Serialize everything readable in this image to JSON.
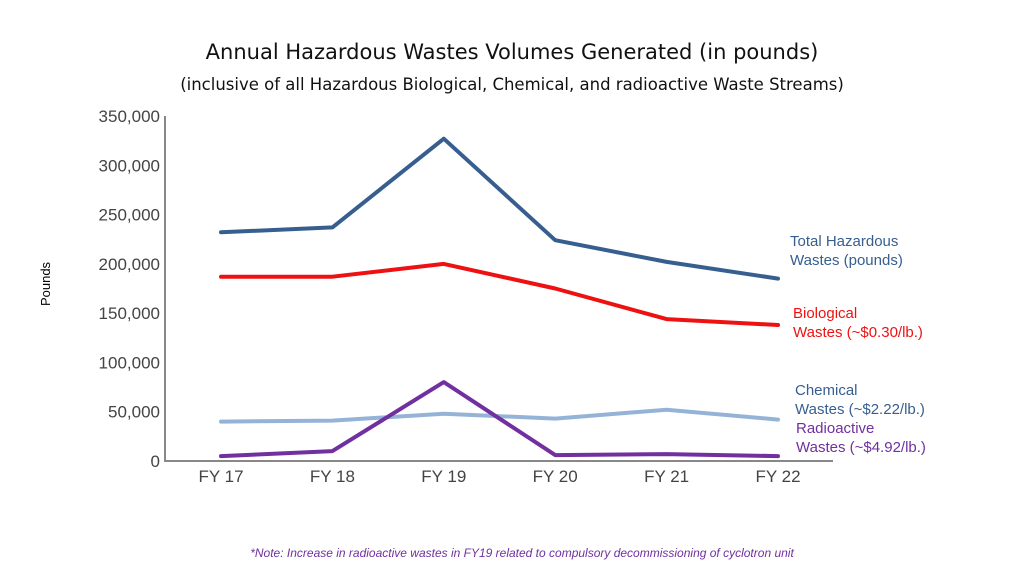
{
  "chart_data": {
    "type": "line",
    "title": "Annual Hazardous Wastes Volumes Generated (in pounds)",
    "subtitle": "(inclusive of all Hazardous Biological, Chemical, and radioactive Waste Streams)",
    "ylabel": "Pounds",
    "xlabel": "",
    "categories": [
      "FY 17",
      "FY 18",
      "FY 19",
      "FY 20",
      "FY 21",
      "FY 22"
    ],
    "ylim": [
      0,
      350000
    ],
    "yticks": [
      0,
      50000,
      100000,
      150000,
      200000,
      250000,
      300000,
      350000
    ],
    "ytick_labels": [
      "0",
      "50,000",
      "100,000",
      "150,000",
      "200,000",
      "250,000",
      "300,000",
      "350,000"
    ],
    "grid": false,
    "legend": "direct labels at right",
    "series": [
      {
        "name": "Total Hazardous Wastes (pounds)",
        "label_lines": [
          "Total Hazardous",
          "Wastes (pounds)"
        ],
        "color": "#365E8F",
        "values": [
          232000,
          237000,
          327000,
          224000,
          202000,
          185000
        ]
      },
      {
        "name": "Biological Wastes (~$0.30/lb.)",
        "label_lines": [
          "Biological",
          "Wastes  (~$0.30/lb.)"
        ],
        "color": "#EE1111",
        "values": [
          187000,
          187000,
          200000,
          175000,
          144000,
          138000
        ]
      },
      {
        "name": "Chemical Wastes (~$2.22/lb.)",
        "label_lines": [
          "Chemical",
          "Wastes (~$2.22/lb.)"
        ],
        "color": "#95B3D7",
        "values": [
          40000,
          41000,
          48000,
          43000,
          52000,
          42000
        ]
      },
      {
        "name": "Radioactive Wastes (~$4.92/lb.)",
        "label_lines": [
          "Radioactive",
          "Wastes (~$4.92/lb.)"
        ],
        "color": "#7030A0",
        "values": [
          5000,
          10000,
          80000,
          6000,
          7000,
          5000
        ]
      }
    ],
    "label_colors": [
      "#365E8F",
      "#EE1111",
      "#365E8F",
      "#7030A0"
    ]
  },
  "note": {
    "text": "*Note: Increase in radioactive wastes in FY19 related to compulsory decommissioning of cyclotron unit",
    "color": "#7030A0"
  }
}
